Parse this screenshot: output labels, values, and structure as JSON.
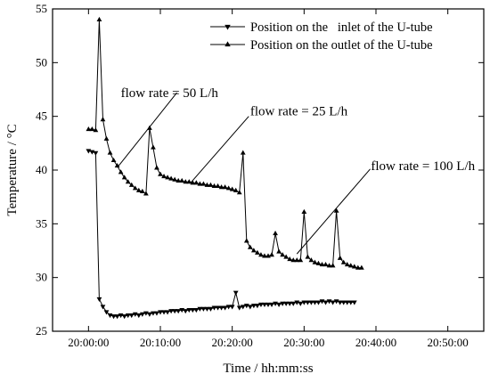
{
  "chart_data": {
    "type": "line",
    "xlabel": "Time / hh:mm:ss",
    "ylabel": "Temperature / °C",
    "xlim": [
      -5,
      55
    ],
    "ylim": [
      25,
      55
    ],
    "x_unit": "minutes after 20:00:00",
    "x_ticks": [
      {
        "v": 0,
        "label": "20:00:00"
      },
      {
        "v": 10,
        "label": "20:10:00"
      },
      {
        "v": 20,
        "label": "20:20:00"
      },
      {
        "v": 30,
        "label": "20:30:00"
      },
      {
        "v": 40,
        "label": "20:40:00"
      },
      {
        "v": 50,
        "label": "20:50:00"
      }
    ],
    "y_ticks": [
      25,
      30,
      35,
      40,
      45,
      50,
      55
    ],
    "legend_position": "top-right",
    "series": [
      {
        "name": "Position on the   inlet of the U-tube",
        "marker": "triangle-down",
        "points": [
          [
            0,
            41.8
          ],
          [
            0.5,
            41.7
          ],
          [
            1,
            41.6
          ],
          [
            1.5,
            28.0
          ],
          [
            2,
            27.3
          ],
          [
            2.5,
            26.8
          ],
          [
            3,
            26.5
          ],
          [
            3.5,
            26.4
          ],
          [
            4,
            26.4
          ],
          [
            4.5,
            26.5
          ],
          [
            5,
            26.4
          ],
          [
            5.5,
            26.5
          ],
          [
            6,
            26.5
          ],
          [
            6.5,
            26.6
          ],
          [
            7,
            26.5
          ],
          [
            7.5,
            26.6
          ],
          [
            8,
            26.7
          ],
          [
            8.5,
            26.6
          ],
          [
            9,
            26.7
          ],
          [
            9.5,
            26.7
          ],
          [
            10,
            26.8
          ],
          [
            10.5,
            26.8
          ],
          [
            11,
            26.8
          ],
          [
            11.5,
            26.9
          ],
          [
            12,
            26.9
          ],
          [
            12.5,
            26.9
          ],
          [
            13,
            27.0
          ],
          [
            13.5,
            26.9
          ],
          [
            14,
            27.0
          ],
          [
            14.5,
            27.0
          ],
          [
            15,
            27.0
          ],
          [
            15.5,
            27.1
          ],
          [
            16,
            27.1
          ],
          [
            16.5,
            27.1
          ],
          [
            17,
            27.1
          ],
          [
            17.5,
            27.2
          ],
          [
            18,
            27.2
          ],
          [
            18.5,
            27.2
          ],
          [
            19,
            27.2
          ],
          [
            19.5,
            27.3
          ],
          [
            20,
            27.3
          ],
          [
            20.5,
            28.6
          ],
          [
            21,
            27.2
          ],
          [
            21.5,
            27.3
          ],
          [
            22,
            27.4
          ],
          [
            22.5,
            27.3
          ],
          [
            23,
            27.4
          ],
          [
            23.5,
            27.4
          ],
          [
            24,
            27.5
          ],
          [
            24.5,
            27.5
          ],
          [
            25,
            27.5
          ],
          [
            25.5,
            27.5
          ],
          [
            26,
            27.6
          ],
          [
            26.5,
            27.5
          ],
          [
            27,
            27.6
          ],
          [
            27.5,
            27.6
          ],
          [
            28,
            27.6
          ],
          [
            28.5,
            27.6
          ],
          [
            29,
            27.7
          ],
          [
            29.5,
            27.6
          ],
          [
            30,
            27.7
          ],
          [
            30.5,
            27.7
          ],
          [
            31,
            27.7
          ],
          [
            31.5,
            27.7
          ],
          [
            32,
            27.7
          ],
          [
            32.5,
            27.8
          ],
          [
            33,
            27.7
          ],
          [
            33.5,
            27.8
          ],
          [
            34,
            27.7
          ],
          [
            34.5,
            27.8
          ],
          [
            35,
            27.7
          ],
          [
            35.5,
            27.7
          ],
          [
            36,
            27.7
          ],
          [
            36.5,
            27.7
          ],
          [
            37,
            27.7
          ]
        ]
      },
      {
        "name": "Position on the outlet of the U-tube",
        "marker": "triangle-up",
        "points": [
          [
            0,
            43.8
          ],
          [
            0.5,
            43.8
          ],
          [
            1,
            43.7
          ],
          [
            1.5,
            54.0
          ],
          [
            2,
            44.7
          ],
          [
            2.5,
            42.9
          ],
          [
            3,
            41.6
          ],
          [
            3.5,
            40.9
          ],
          [
            4,
            40.4
          ],
          [
            4.5,
            39.8
          ],
          [
            5,
            39.3
          ],
          [
            5.5,
            38.9
          ],
          [
            6,
            38.6
          ],
          [
            6.5,
            38.3
          ],
          [
            7,
            38.1
          ],
          [
            7.5,
            38.0
          ],
          [
            8,
            37.8
          ],
          [
            8.5,
            43.9
          ],
          [
            9,
            42.1
          ],
          [
            9.5,
            40.2
          ],
          [
            10,
            39.6
          ],
          [
            10.5,
            39.4
          ],
          [
            11,
            39.3
          ],
          [
            11.5,
            39.2
          ],
          [
            12,
            39.1
          ],
          [
            12.5,
            39.0
          ],
          [
            13,
            39.0
          ],
          [
            13.5,
            38.9
          ],
          [
            14,
            38.9
          ],
          [
            14.5,
            38.8
          ],
          [
            15,
            38.8
          ],
          [
            15.5,
            38.7
          ],
          [
            16,
            38.7
          ],
          [
            16.5,
            38.6
          ],
          [
            17,
            38.6
          ],
          [
            17.5,
            38.5
          ],
          [
            18,
            38.5
          ],
          [
            18.5,
            38.4
          ],
          [
            19,
            38.4
          ],
          [
            19.5,
            38.3
          ],
          [
            20,
            38.2
          ],
          [
            20.5,
            38.1
          ],
          [
            21,
            37.9
          ],
          [
            21.5,
            41.6
          ],
          [
            22,
            33.4
          ],
          [
            22.5,
            32.8
          ],
          [
            23,
            32.5
          ],
          [
            23.5,
            32.3
          ],
          [
            24,
            32.1
          ],
          [
            24.5,
            32.0
          ],
          [
            25,
            32.0
          ],
          [
            25.5,
            32.1
          ],
          [
            26,
            34.1
          ],
          [
            26.5,
            32.4
          ],
          [
            27,
            32.1
          ],
          [
            27.5,
            31.9
          ],
          [
            28,
            31.7
          ],
          [
            28.5,
            31.6
          ],
          [
            29,
            31.6
          ],
          [
            29.5,
            31.6
          ],
          [
            30,
            36.1
          ],
          [
            30.5,
            31.9
          ],
          [
            31,
            31.6
          ],
          [
            31.5,
            31.4
          ],
          [
            32,
            31.3
          ],
          [
            32.5,
            31.2
          ],
          [
            33,
            31.2
          ],
          [
            33.5,
            31.1
          ],
          [
            34,
            31.1
          ],
          [
            34.5,
            36.2
          ],
          [
            35,
            31.8
          ],
          [
            35.5,
            31.4
          ],
          [
            36,
            31.2
          ],
          [
            36.5,
            31.1
          ],
          [
            37,
            31.0
          ],
          [
            37.5,
            30.9
          ],
          [
            38,
            30.9
          ]
        ]
      }
    ],
    "annotations": [
      {
        "text": "flow rate = 50 L/h",
        "tx": 4.5,
        "ty": 47.2,
        "x1": 4.2,
        "y1": 40.4,
        "x2": 12.3,
        "y2": 47.2
      },
      {
        "text": "flow rate = 25 L/h",
        "tx": 22.5,
        "ty": 45.5,
        "x1": 14.2,
        "y1": 38.8,
        "x2": 22.3,
        "y2": 45.0
      },
      {
        "text": "flow rate = 100 L/h",
        "tx": 39.3,
        "ty": 40.4,
        "x1": 29.0,
        "y1": 32.2,
        "x2": 39.2,
        "y2": 40.1
      }
    ]
  }
}
